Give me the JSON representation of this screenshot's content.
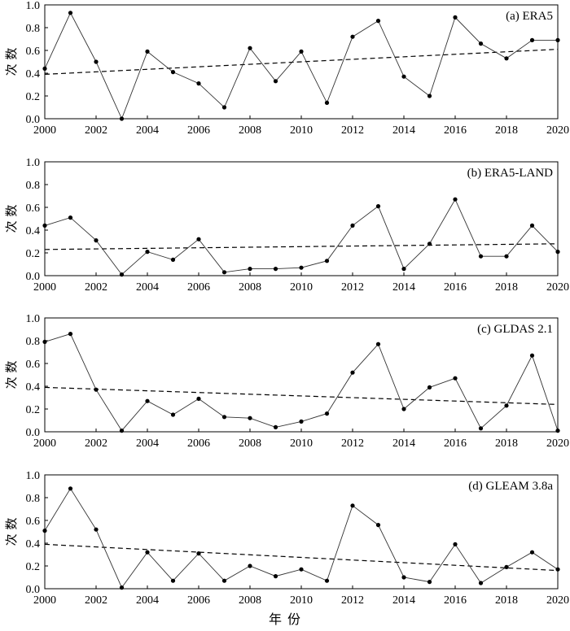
{
  "xlabel": "年 份",
  "chart_data": [
    {
      "type": "line",
      "title": "(a) ERA5",
      "ylabel": "次 数",
      "xlabel": "",
      "x": [
        2000,
        2001,
        2002,
        2003,
        2004,
        2005,
        2006,
        2007,
        2008,
        2009,
        2010,
        2011,
        2012,
        2013,
        2014,
        2015,
        2016,
        2017,
        2018,
        2019,
        2020
      ],
      "xticks": [
        "2000",
        "2002",
        "2004",
        "2006",
        "2008",
        "2010",
        "2012",
        "2014",
        "2016",
        "2018",
        "2020"
      ],
      "yticks": [
        "0.0",
        "0.2",
        "0.4",
        "0.6",
        "0.8",
        "1.0"
      ],
      "xlim": [
        2000,
        2020
      ],
      "ylim": [
        0,
        1.0
      ],
      "series": [
        {
          "values": [
            0.44,
            0.93,
            0.5,
            0.0,
            0.59,
            0.41,
            0.31,
            0.1,
            0.62,
            0.33,
            0.59,
            0.14,
            0.72,
            0.86,
            0.37,
            0.2,
            0.89,
            0.66,
            0.53,
            0.69,
            0.69
          ]
        }
      ],
      "trend": {
        "style": "dashed",
        "start": 0.39,
        "end": 0.61
      }
    },
    {
      "type": "line",
      "title": "(b) ERA5-LAND",
      "ylabel": "次 数",
      "xlabel": "",
      "x": [
        2000,
        2001,
        2002,
        2003,
        2004,
        2005,
        2006,
        2007,
        2008,
        2009,
        2010,
        2011,
        2012,
        2013,
        2014,
        2015,
        2016,
        2017,
        2018,
        2019,
        2020
      ],
      "xticks": [
        "2000",
        "2002",
        "2004",
        "2006",
        "2008",
        "2010",
        "2012",
        "2014",
        "2016",
        "2018",
        "2020"
      ],
      "yticks": [
        "0.0",
        "0.2",
        "0.4",
        "0.6",
        "0.8",
        "1.0"
      ],
      "xlim": [
        2000,
        2020
      ],
      "ylim": [
        0,
        1.0
      ],
      "series": [
        {
          "values": [
            0.44,
            0.51,
            0.31,
            0.01,
            0.21,
            0.14,
            0.32,
            0.03,
            0.06,
            0.06,
            0.07,
            0.13,
            0.44,
            0.61,
            0.06,
            0.28,
            0.67,
            0.17,
            0.17,
            0.44,
            0.21
          ]
        }
      ],
      "trend": {
        "style": "dashed",
        "start": 0.23,
        "end": 0.28
      }
    },
    {
      "type": "line",
      "title": "(c) GLDAS 2.1",
      "ylabel": "次 数",
      "xlabel": "",
      "x": [
        2000,
        2001,
        2002,
        2003,
        2004,
        2005,
        2006,
        2007,
        2008,
        2009,
        2010,
        2011,
        2012,
        2013,
        2014,
        2015,
        2016,
        2017,
        2018,
        2019,
        2020
      ],
      "xticks": [
        "2000",
        "2002",
        "2004",
        "2006",
        "2008",
        "2010",
        "2012",
        "2014",
        "2016",
        "2018",
        "2020"
      ],
      "yticks": [
        "0.0",
        "0.2",
        "0.4",
        "0.6",
        "0.8",
        "1.0"
      ],
      "xlim": [
        2000,
        2020
      ],
      "ylim": [
        0,
        1.0
      ],
      "series": [
        {
          "values": [
            0.79,
            0.86,
            0.37,
            0.01,
            0.27,
            0.15,
            0.29,
            0.13,
            0.12,
            0.04,
            0.09,
            0.16,
            0.52,
            0.77,
            0.2,
            0.39,
            0.47,
            0.03,
            0.23,
            0.67,
            0.01
          ]
        }
      ],
      "trend": {
        "style": "dashed",
        "start": 0.39,
        "end": 0.24
      }
    },
    {
      "type": "line",
      "title": "(d) GLEAM 3.8a",
      "ylabel": "次 数",
      "xlabel": "",
      "x": [
        2000,
        2001,
        2002,
        2003,
        2004,
        2005,
        2006,
        2007,
        2008,
        2009,
        2010,
        2011,
        2012,
        2013,
        2014,
        2015,
        2016,
        2017,
        2018,
        2019,
        2020
      ],
      "xticks": [
        "2000",
        "2002",
        "2004",
        "2006",
        "2008",
        "2010",
        "2012",
        "2014",
        "2016",
        "2018",
        "2020"
      ],
      "yticks": [
        "0.0",
        "0.2",
        "0.4",
        "0.6",
        "0.8",
        "1.0"
      ],
      "xlim": [
        2000,
        2020
      ],
      "ylim": [
        0,
        1.0
      ],
      "series": [
        {
          "values": [
            0.51,
            0.88,
            0.52,
            0.01,
            0.32,
            0.07,
            0.31,
            0.07,
            0.2,
            0.11,
            0.17,
            0.07,
            0.73,
            0.56,
            0.1,
            0.06,
            0.39,
            0.05,
            0.19,
            0.32,
            0.17
          ]
        }
      ],
      "trend": {
        "style": "dashed",
        "start": 0.39,
        "end": 0.16
      }
    }
  ]
}
